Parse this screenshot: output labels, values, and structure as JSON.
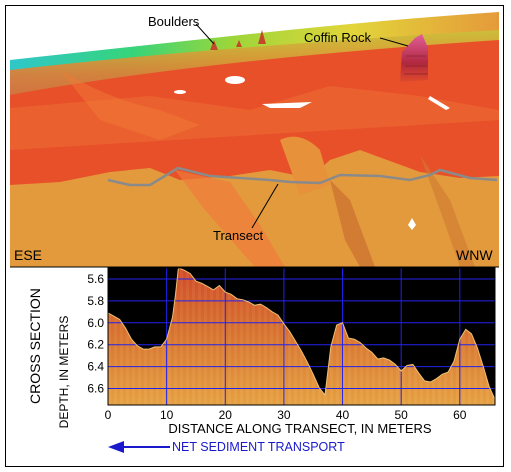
{
  "scene": {
    "labels": {
      "boulders": "Boulders",
      "coffin_rock": "Coffin Rock",
      "transect": "Transect",
      "ese": "ESE",
      "wnw": "WNW"
    },
    "colors": {
      "red_seafloor": "#e8502a",
      "orange_sand": "#e39a3c",
      "transect_line": "#8a8a8a"
    }
  },
  "cross_section": {
    "side_label_line1": "CROSS SECTION",
    "ylabel": "DEPTH, IN METERS",
    "xlabel": "DISTANCE ALONG TRANSECT, IN METERS",
    "arrow_label": "NET SEDIMENT TRANSPORT",
    "arrow_color": "#1a1acc",
    "grid_color": "#2222ee",
    "background": "#000000"
  },
  "chart_data": {
    "type": "area",
    "xlabel": "DISTANCE ALONG TRANSECT, IN METERS",
    "ylabel": "DEPTH, IN METERS",
    "xlim": [
      0,
      66
    ],
    "ylim": [
      6.75,
      5.5
    ],
    "y_inverted": true,
    "x_ticks": [
      0,
      10,
      20,
      30,
      40,
      50,
      60
    ],
    "y_ticks": [
      5.6,
      5.8,
      6.0,
      6.2,
      6.4,
      6.6
    ],
    "y_tick_labels": [
      "5.6",
      "5.8",
      "6.0",
      "6.2",
      "6.4",
      "6.6"
    ],
    "grid": true,
    "profile": {
      "x": [
        0,
        1,
        2,
        3,
        4,
        5,
        6,
        7,
        8,
        9,
        10,
        11,
        11.5,
        12,
        13,
        14,
        15,
        16,
        17,
        18,
        19,
        20,
        21,
        22,
        23,
        24,
        25,
        26,
        27,
        28,
        29,
        30,
        31,
        32,
        33,
        34,
        35,
        36,
        37,
        38,
        39,
        40,
        41,
        42,
        43,
        44,
        45,
        46,
        47,
        48,
        49,
        50,
        51,
        52,
        53,
        54,
        55,
        56,
        57,
        58,
        59,
        60,
        61,
        62,
        63,
        64,
        65,
        66
      ],
      "depth": [
        5.91,
        5.94,
        5.97,
        6.05,
        6.15,
        6.21,
        6.24,
        6.24,
        6.22,
        6.22,
        6.15,
        5.95,
        5.75,
        5.5,
        5.52,
        5.55,
        5.62,
        5.64,
        5.67,
        5.7,
        5.66,
        5.72,
        5.74,
        5.78,
        5.79,
        5.81,
        5.84,
        5.83,
        5.86,
        5.9,
        5.93,
        6.01,
        6.08,
        6.17,
        6.26,
        6.36,
        6.47,
        6.59,
        6.66,
        6.22,
        6.02,
        6.0,
        6.14,
        6.15,
        6.18,
        6.23,
        6.27,
        6.33,
        6.32,
        6.34,
        6.38,
        6.44,
        6.39,
        6.38,
        6.46,
        6.53,
        6.54,
        6.51,
        6.47,
        6.45,
        6.35,
        6.15,
        6.06,
        6.1,
        6.23,
        6.4,
        6.58,
        6.7
      ]
    }
  }
}
